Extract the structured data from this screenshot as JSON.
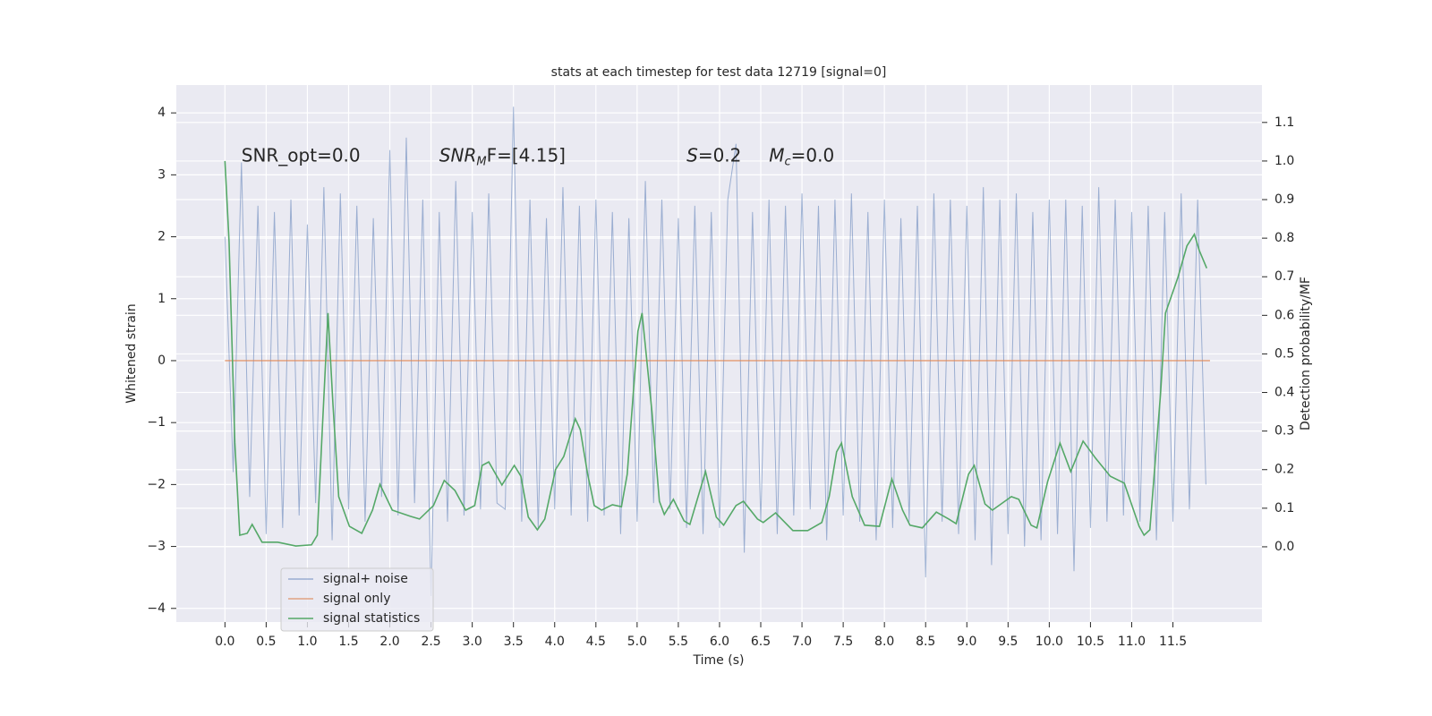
{
  "chart_data": {
    "type": "line",
    "title": "stats at each timestep for test data 12719 [signal=0]",
    "xlabel": "Time (s)",
    "ylabel": "Whitened strain",
    "y2label": "Detection probability/MF",
    "xlim": [
      -0.59,
      12.58
    ],
    "ylim": [
      -4.22,
      4.45
    ],
    "y2lim": [
      -0.195,
      1.197
    ],
    "grid": true,
    "legend": "lower left",
    "xticks": [
      {
        "value": 0,
        "label": "0.0"
      },
      {
        "value": 0.5,
        "label": "0.5"
      },
      {
        "value": 1,
        "label": "1.0"
      },
      {
        "value": 1.5,
        "label": "1.5"
      },
      {
        "value": 2,
        "label": "2.0"
      },
      {
        "value": 2.5,
        "label": "2.5"
      },
      {
        "value": 3,
        "label": "3.0"
      },
      {
        "value": 3.5,
        "label": "3.5"
      },
      {
        "value": 4,
        "label": "4.0"
      },
      {
        "value": 4.5,
        "label": "4.5"
      },
      {
        "value": 5,
        "label": "5.0"
      },
      {
        "value": 5.5,
        "label": "5.5"
      },
      {
        "value": 6,
        "label": "6.0"
      },
      {
        "value": 6.5,
        "label": "6.5"
      },
      {
        "value": 7,
        "label": "7.0"
      },
      {
        "value": 7.5,
        "label": "7.5"
      },
      {
        "value": 8,
        "label": "8.0"
      },
      {
        "value": 8.5,
        "label": "8.5"
      },
      {
        "value": 9,
        "label": "9.0"
      },
      {
        "value": 9.5,
        "label": "9.5"
      },
      {
        "value": 10,
        "label": "10.0"
      },
      {
        "value": 10.5,
        "label": "10.5"
      },
      {
        "value": 11,
        "label": "11.0"
      },
      {
        "value": 11.5,
        "label": "11.5"
      }
    ],
    "yticks": [
      {
        "value": -4,
        "label": "−4"
      },
      {
        "value": -3,
        "label": "−3"
      },
      {
        "value": -2,
        "label": "−2"
      },
      {
        "value": -1,
        "label": "−1"
      },
      0,
      1,
      2,
      3,
      4
    ],
    "y2ticks": [
      {
        "value": 0,
        "label": "0.0"
      },
      {
        "value": 0.1,
        "label": "0.1"
      },
      {
        "value": 0.2,
        "label": "0.2"
      },
      {
        "value": 0.3,
        "label": "0.3"
      },
      {
        "value": 0.4,
        "label": "0.4"
      },
      {
        "value": 0.5,
        "label": "0.5"
      },
      {
        "value": 0.6,
        "label": "0.6"
      },
      {
        "value": 0.7,
        "label": "0.7"
      },
      {
        "value": 0.8,
        "label": "0.8"
      },
      {
        "value": 0.9,
        "label": "0.9"
      },
      {
        "value": 1,
        "label": "1.0"
      },
      {
        "value": 1.1,
        "label": "1.1"
      }
    ],
    "annotations": [
      {
        "main": "SNR_opt=0.0",
        "x": 0.2,
        "y": 3.3
      },
      {
        "main": "SNR",
        "sub": "M",
        "after": "F=[4.15]",
        "italic": true,
        "x": 2.6,
        "y": 3.3
      },
      {
        "main": "S",
        "after": "=0.2",
        "italic": true,
        "x": 5.6,
        "y": 3.3
      },
      {
        "main": "M",
        "sub": "c",
        "after": "=0.0",
        "italic": true,
        "x": 6.6,
        "y": 3.3
      }
    ],
    "series": [
      {
        "name": "signal+ noise",
        "color": "#4c72b0",
        "alpha": 0.5,
        "axis": "y",
        "x": [
          0,
          0.1,
          0.2,
          0.3,
          0.4,
          0.5,
          0.6,
          0.7,
          0.8,
          0.9,
          1,
          1.1,
          1.2,
          1.3,
          1.4,
          1.5,
          1.6,
          1.7,
          1.8,
          1.9,
          2,
          2.1,
          2.2,
          2.3,
          2.4,
          2.5,
          2.6,
          2.7,
          2.8,
          2.9,
          3,
          3.1,
          3.2,
          3.3,
          3.4,
          3.5,
          3.6,
          3.7,
          3.8,
          3.9,
          4,
          4.1,
          4.2,
          4.3,
          4.4,
          4.5,
          4.6,
          4.7,
          4.8,
          4.9,
          5,
          5.1,
          5.2,
          5.3,
          5.4,
          5.5,
          5.6,
          5.7,
          5.8,
          5.9,
          6,
          6.1,
          6.2,
          6.3,
          6.4,
          6.5,
          6.6,
          6.7,
          6.8,
          6.9,
          7,
          7.1,
          7.2,
          7.3,
          7.4,
          7.5,
          7.6,
          7.7,
          7.8,
          7.9,
          8,
          8.1,
          8.2,
          8.3,
          8.4,
          8.5,
          8.6,
          8.7,
          8.8,
          8.9,
          9,
          9.1,
          9.2,
          9.3,
          9.4,
          9.5,
          9.6,
          9.7,
          9.8,
          9.9,
          10,
          10.1,
          10.2,
          10.3,
          10.4,
          10.5,
          10.6,
          10.7,
          10.8,
          10.9,
          11,
          11.1,
          11.2,
          11.3,
          11.4,
          11.5,
          11.6,
          11.7,
          11.8,
          11.9
        ],
        "values": [
          2.0,
          -1.8,
          3.2,
          -2.2,
          2.5,
          -2.8,
          2.4,
          -2.7,
          2.6,
          -2.5,
          2.2,
          -2.3,
          2.8,
          -2.9,
          2.7,
          -2.4,
          2.5,
          -2.6,
          2.3,
          -2.2,
          3.4,
          -2.5,
          3.6,
          -2.3,
          2.6,
          -3.8,
          2.4,
          -2.6,
          2.9,
          -2.5,
          2.4,
          -2.4,
          2.7,
          -2.3,
          -2.4,
          4.1,
          -2.6,
          2.6,
          -2.7,
          2.3,
          -2.4,
          2.8,
          -2.5,
          2.5,
          -2.6,
          2.6,
          -2.5,
          2.4,
          -2.8,
          2.3,
          -2.6,
          2.9,
          -2.3,
          2.6,
          -2.4,
          2.3,
          -2.7,
          2.5,
          -2.8,
          2.4,
          -2.7,
          2.6,
          3.5,
          -3.1,
          2.4,
          -2.6,
          2.6,
          -2.8,
          2.5,
          -2.5,
          2.7,
          -2.4,
          2.5,
          -2.9,
          2.6,
          -2.5,
          2.7,
          -2.6,
          2.4,
          -2.9,
          2.6,
          -2.7,
          2.3,
          -2.6,
          2.5,
          -3.5,
          2.7,
          -2.6,
          2.6,
          -2.8,
          2.5,
          -2.9,
          2.8,
          -3.3,
          2.6,
          -2.8,
          2.7,
          -3.0,
          2.4,
          -2.9,
          2.6,
          -2.8,
          2.6,
          -3.4,
          2.5,
          -2.7,
          2.8,
          -2.6,
          2.6,
          -2.5,
          2.4,
          -2.6,
          2.5,
          -2.9,
          2.4,
          -2.6,
          2.7,
          -2.4,
          2.6,
          -2.0
        ]
      },
      {
        "name": "signal only",
        "color": "#dd8452",
        "alpha": 0.7,
        "axis": "y",
        "x": [
          0,
          11.95
        ],
        "values": [
          0,
          0
        ]
      },
      {
        "name": "signal statistics",
        "color": "#55a868",
        "alpha": 1,
        "axis": "y2",
        "x": [
          0,
          0.05,
          0.12,
          0.18,
          0.27,
          0.33,
          0.45,
          0.64,
          0.86,
          1.05,
          1.12,
          1.18,
          1.25,
          1.31,
          1.38,
          1.51,
          1.66,
          1.79,
          1.88,
          2.03,
          2.25,
          2.36,
          2.53,
          2.66,
          2.79,
          2.92,
          3.03,
          3.12,
          3.2,
          3.36,
          3.51,
          3.59,
          3.68,
          3.79,
          3.88,
          4.01,
          4.11,
          4.25,
          4.31,
          4.4,
          4.48,
          4.57,
          4.7,
          4.81,
          4.88,
          5.01,
          5.06,
          5.18,
          5.27,
          5.33,
          5.44,
          5.57,
          5.64,
          5.83,
          5.96,
          6.05,
          6.2,
          6.29,
          6.46,
          6.53,
          6.68,
          6.89,
          7.07,
          7.24,
          7.33,
          7.42,
          7.48,
          7.61,
          7.76,
          7.94,
          8.09,
          8.22,
          8.31,
          8.46,
          8.63,
          8.78,
          8.87,
          9.02,
          9.09,
          9.22,
          9.31,
          9.54,
          9.63,
          9.78,
          9.85,
          9.98,
          10.13,
          10.26,
          10.41,
          10.56,
          10.74,
          10.91,
          11.09,
          11.15,
          11.22,
          11.35,
          11.41,
          11.56,
          11.67,
          11.76,
          11.82,
          11.91
        ],
        "values": [
          1.0,
          0.79,
          0.27,
          0.03,
          0.035,
          0.058,
          0.012,
          0.012,
          0.002,
          0.005,
          0.03,
          0.3,
          0.606,
          0.37,
          0.13,
          0.053,
          0.035,
          0.095,
          0.162,
          0.095,
          0.079,
          0.072,
          0.107,
          0.172,
          0.146,
          0.095,
          0.107,
          0.211,
          0.22,
          0.16,
          0.211,
          0.183,
          0.077,
          0.044,
          0.072,
          0.2,
          0.234,
          0.332,
          0.304,
          0.188,
          0.107,
          0.095,
          0.109,
          0.104,
          0.188,
          0.559,
          0.606,
          0.35,
          0.118,
          0.084,
          0.123,
          0.067,
          0.058,
          0.195,
          0.077,
          0.056,
          0.107,
          0.118,
          0.072,
          0.063,
          0.088,
          0.042,
          0.042,
          0.063,
          0.13,
          0.246,
          0.269,
          0.13,
          0.056,
          0.053,
          0.176,
          0.095,
          0.056,
          0.049,
          0.09,
          0.072,
          0.06,
          0.188,
          0.211,
          0.111,
          0.095,
          0.13,
          0.123,
          0.056,
          0.049,
          0.169,
          0.269,
          0.195,
          0.274,
          0.23,
          0.183,
          0.165,
          0.053,
          0.03,
          0.044,
          0.397,
          0.606,
          0.698,
          0.78,
          0.81,
          0.768,
          0.722
        ]
      }
    ]
  }
}
